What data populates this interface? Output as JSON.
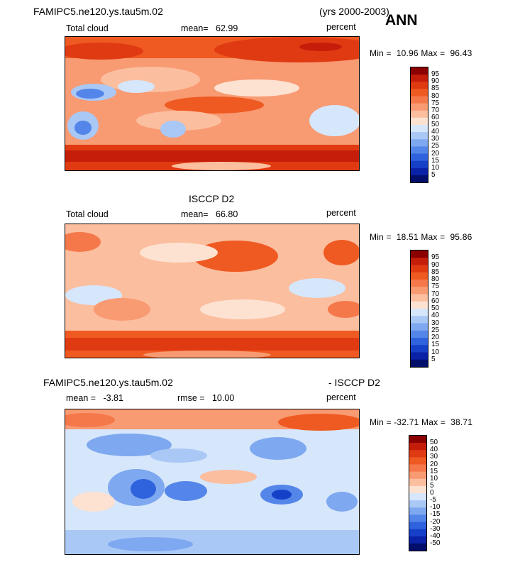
{
  "season": "ANN",
  "panels": [
    {
      "title": "FAMIPC5.ne120.ys.tau5m.02",
      "years": "(yrs 2000-2003)",
      "left_label": "Total cloud",
      "mean_label": "mean=",
      "mean_value": "62.99",
      "rmse_label": "",
      "rmse_value": "",
      "units": "percent",
      "min_text": "Min =",
      "min_value": "10.96",
      "max_text": "Max =",
      "max_value": "96.43",
      "colorbar_levels": [
        "95",
        "90",
        "85",
        "80",
        "75",
        "70",
        "60",
        "50",
        "40",
        "30",
        "25",
        "20",
        "15",
        "10",
        "5"
      ],
      "colorbar_colors": [
        "#8b0000",
        "#c41e0a",
        "#e03a12",
        "#ef5a22",
        "#f5784a",
        "#f89a72",
        "#fbbe9f",
        "#fde2d2",
        "#d6e6fb",
        "#aac8f5",
        "#7ea8f0",
        "#5486ea",
        "#2f63dd",
        "#1740c8",
        "#0a22a8",
        "#020f6a"
      ]
    },
    {
      "title": "ISCCP D2",
      "years": "",
      "left_label": "Total cloud",
      "mean_label": "mean=",
      "mean_value": "66.80",
      "rmse_label": "",
      "rmse_value": "",
      "units": "percent",
      "min_text": "Min =",
      "min_value": "18.51",
      "max_text": "Max =",
      "max_value": "95.86",
      "colorbar_levels": [
        "95",
        "90",
        "85",
        "80",
        "75",
        "70",
        "60",
        "50",
        "40",
        "30",
        "25",
        "20",
        "15",
        "10",
        "5"
      ],
      "colorbar_colors": [
        "#8b0000",
        "#c41e0a",
        "#e03a12",
        "#ef5a22",
        "#f5784a",
        "#f89a72",
        "#fbbe9f",
        "#fde2d2",
        "#d6e6fb",
        "#aac8f5",
        "#7ea8f0",
        "#5486ea",
        "#2f63dd",
        "#1740c8",
        "#0a22a8",
        "#020f6a"
      ]
    },
    {
      "title": "FAMIPC5.ne120.ys.tau5m.02",
      "title_right": "- ISCCP D2",
      "years": "",
      "left_label": "",
      "mean_label": "mean =",
      "mean_value": "-3.81",
      "rmse_label": "rmse =",
      "rmse_value": "10.00",
      "units": "percent",
      "min_text": "Min =",
      "min_value": "-32.71",
      "max_text": "Max =",
      "max_value": "38.71",
      "colorbar_levels": [
        "50",
        "40",
        "30",
        "20",
        "15",
        "10",
        "5",
        "0",
        "-5",
        "-10",
        "-15",
        "-20",
        "-30",
        "-40",
        "-50"
      ],
      "colorbar_colors": [
        "#8b0000",
        "#c41e0a",
        "#e03a12",
        "#ef5a22",
        "#f5784a",
        "#f89a72",
        "#fbbe9f",
        "#fde2d2",
        "#d6e6fb",
        "#aac8f5",
        "#7ea8f0",
        "#5486ea",
        "#2f63dd",
        "#1740c8",
        "#0a22a8",
        "#020f6a"
      ]
    }
  ]
}
